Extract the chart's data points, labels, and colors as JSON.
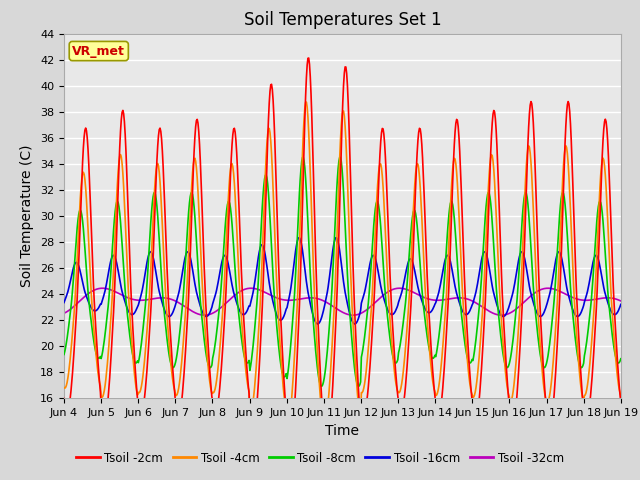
{
  "title": "Soil Temperatures Set 1",
  "xlabel": "Time",
  "ylabel": "Soil Temperature (C)",
  "ylim": [
    16,
    44
  ],
  "yticks": [
    16,
    18,
    20,
    22,
    24,
    26,
    28,
    30,
    32,
    34,
    36,
    38,
    40,
    42,
    44
  ],
  "xlim": [
    4,
    19
  ],
  "xtick_positions": [
    4,
    5,
    6,
    7,
    8,
    9,
    10,
    11,
    12,
    13,
    14,
    15,
    16,
    17,
    18,
    19
  ],
  "xtick_labels": [
    "Jun 4",
    "Jun 5",
    "Jun 6",
    "Jun 7",
    "Jun 8",
    "Jun 9",
    "Jun 10",
    "Jun 11",
    "Jun 12",
    "Jun 13",
    "Jun 14",
    "Jun 15",
    "Jun 16",
    "Jun 17",
    "Jun 18",
    "Jun 19"
  ],
  "series_colors": [
    "#ff0000",
    "#ff8800",
    "#00cc00",
    "#0000dd",
    "#bb00bb"
  ],
  "series_labels": [
    "Tsoil -2cm",
    "Tsoil -4cm",
    "Tsoil -8cm",
    "Tsoil -16cm",
    "Tsoil -32cm"
  ],
  "annotation_text": "VR_met",
  "annotation_color": "#cc0000",
  "annotation_bg": "#ffff99",
  "annotation_border": "#999900",
  "bg_color": "#e8e8e8",
  "grid_color": "#ffffff",
  "title_fontsize": 12,
  "axis_label_fontsize": 10,
  "tick_fontsize": 8,
  "fig_width": 6.4,
  "fig_height": 4.8,
  "dpi": 100
}
